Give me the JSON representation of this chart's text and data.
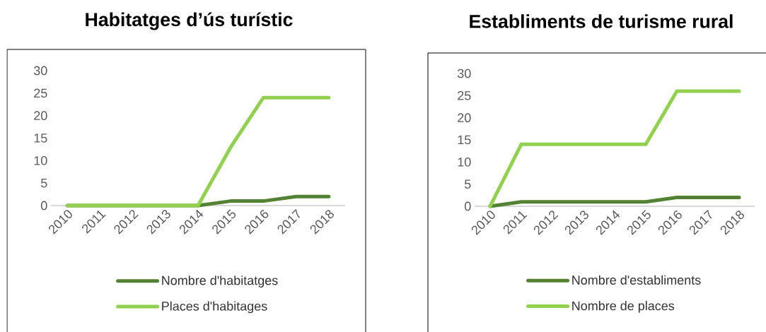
{
  "chart_data": [
    {
      "type": "line",
      "title": "Habitatges d’ús turístic",
      "categories": [
        "2010",
        "2011",
        "2012",
        "2013",
        "2014",
        "2015",
        "2016",
        "2017",
        "2018"
      ],
      "series": [
        {
          "name": "Nombre d'habitatges",
          "color": "#548235",
          "values": [
            0,
            0,
            0,
            0,
            0,
            1,
            1,
            2,
            2
          ]
        },
        {
          "name": "Places d'habitages",
          "color": "#92d050",
          "values": [
            0,
            0,
            0,
            0,
            0,
            13,
            24,
            24,
            24
          ]
        }
      ],
      "ylim": [
        0,
        30
      ],
      "yticks": [
        0,
        5,
        10,
        15,
        20,
        25,
        30
      ],
      "legend": "bottom"
    },
    {
      "type": "line",
      "title": "Establiments de turisme rural",
      "categories": [
        "2010",
        "2011",
        "2012",
        "2013",
        "2014",
        "2015",
        "2016",
        "2017",
        "2018"
      ],
      "series": [
        {
          "name": "Nombre d'establiments",
          "color": "#548235",
          "values": [
            0,
            1,
            1,
            1,
            1,
            1,
            2,
            2,
            2
          ]
        },
        {
          "name": "Nombre de places",
          "color": "#92d050",
          "values": [
            0,
            14,
            14,
            14,
            14,
            14,
            26,
            26,
            26
          ]
        }
      ],
      "ylim": [
        0,
        30
      ],
      "yticks": [
        0,
        5,
        10,
        15,
        20,
        25,
        30
      ],
      "legend": "bottom"
    }
  ]
}
